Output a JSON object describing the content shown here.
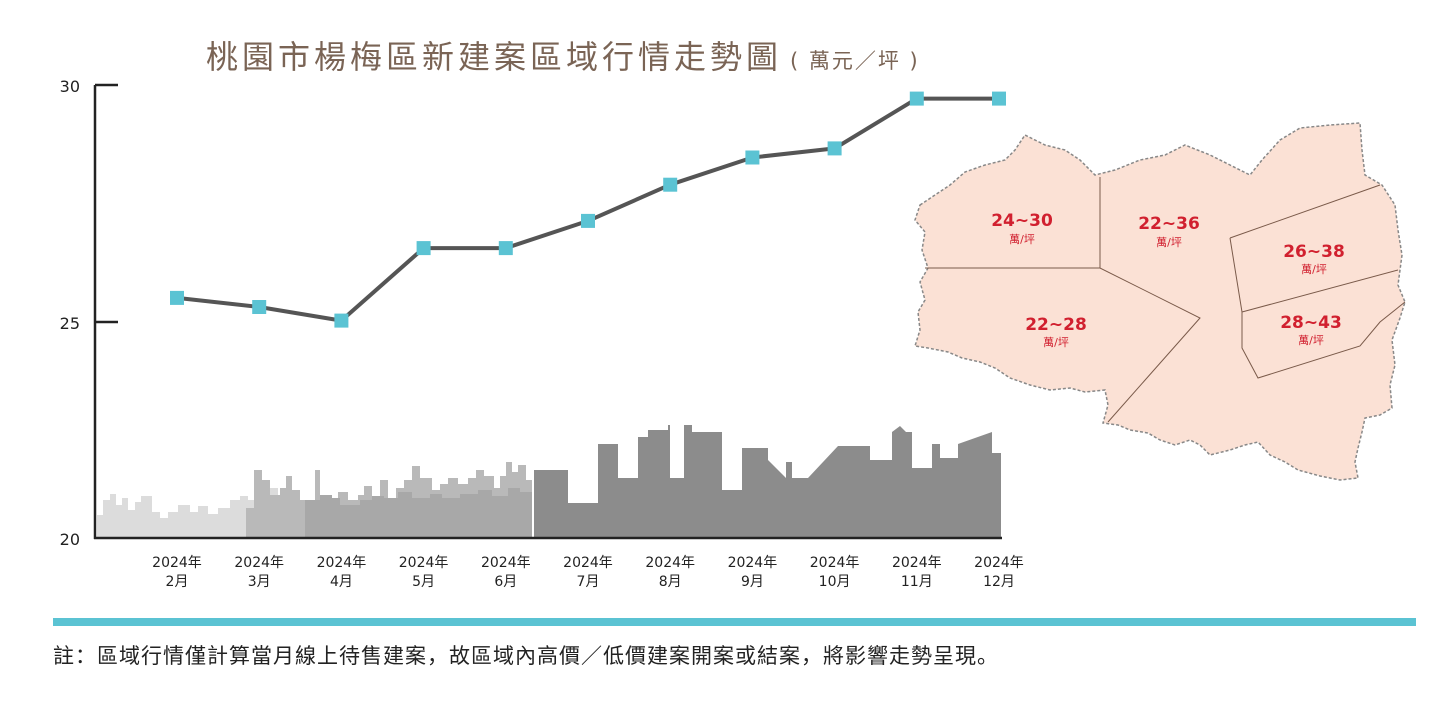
{
  "title": "桃園市楊梅區新建案區域行情走勢圖",
  "unit": "( 萬元／坪 )",
  "footnote": "註：區域行情僅計算當月線上待售建案，故區域內高價／低價建案開案或結案，將影響走勢呈現。",
  "colors": {
    "line": "#555555",
    "marker": "#5bc3d3",
    "region": "#fbe1d5",
    "region_label": "#d1202f"
  },
  "chart_data": {
    "type": "line",
    "title": "桃園市楊梅區新建案區域行情走勢圖",
    "ylabel": "萬元／坪",
    "ylim": [
      20,
      30
    ],
    "yticks": [
      "30",
      "25",
      "20"
    ],
    "categories": [
      [
        "2024年",
        "2月"
      ],
      [
        "2024年",
        "3月"
      ],
      [
        "2024年",
        "4月"
      ],
      [
        "2024年",
        "5月"
      ],
      [
        "2024年",
        "6月"
      ],
      [
        "2024年",
        "7月"
      ],
      [
        "2024年",
        "8月"
      ],
      [
        "2024年",
        "9月"
      ],
      [
        "2024年",
        "10月"
      ],
      [
        "2024年",
        "11月"
      ],
      [
        "2024年",
        "12月"
      ]
    ],
    "values": [
      25.3,
      25.1,
      24.8,
      26.4,
      26.4,
      27.0,
      27.8,
      28.4,
      28.6,
      29.7,
      29.7
    ],
    "grid": false
  },
  "map": {
    "regions": [
      {
        "range": "24~30",
        "unit": "萬/坪"
      },
      {
        "range": "22~36",
        "unit": "萬/坪"
      },
      {
        "range": "26~38",
        "unit": "萬/坪"
      },
      {
        "range": "22~28",
        "unit": "萬/坪"
      },
      {
        "range": "28~43",
        "unit": "萬/坪"
      }
    ]
  }
}
